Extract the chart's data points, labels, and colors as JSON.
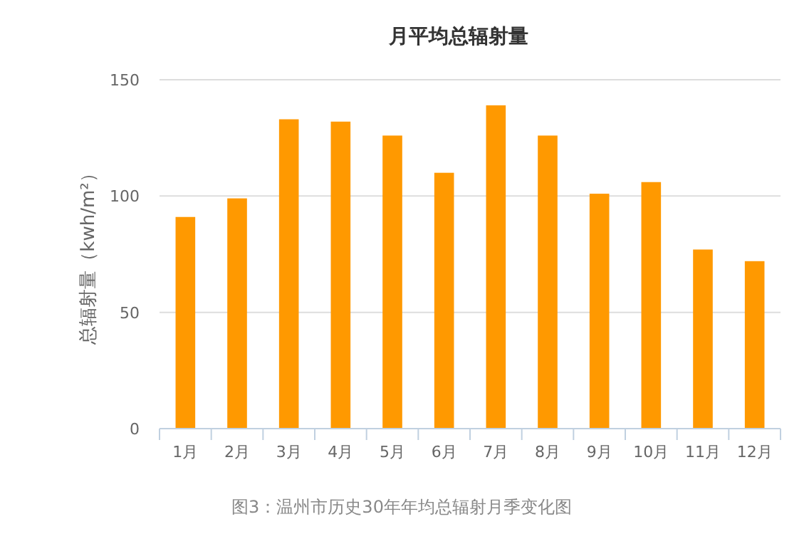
{
  "chart_data": {
    "type": "bar",
    "title": "月平均总辐射量",
    "ylabel": "总辐射量（kwh/m²）",
    "categories": [
      "1月",
      "2月",
      "3月",
      "4月",
      "5月",
      "6月",
      "7月",
      "8月",
      "9月",
      "10月",
      "11月",
      "12月"
    ],
    "values": [
      91,
      99,
      133,
      132,
      126,
      110,
      139,
      126,
      101,
      106,
      77,
      72
    ],
    "color": "#ff9900",
    "ylim": [
      0,
      150
    ],
    "yticks": [
      0,
      50,
      100,
      150
    ],
    "grid": "y",
    "annotations": [
      "图3：温州市历史30年年均总辐射月季变化图"
    ]
  }
}
